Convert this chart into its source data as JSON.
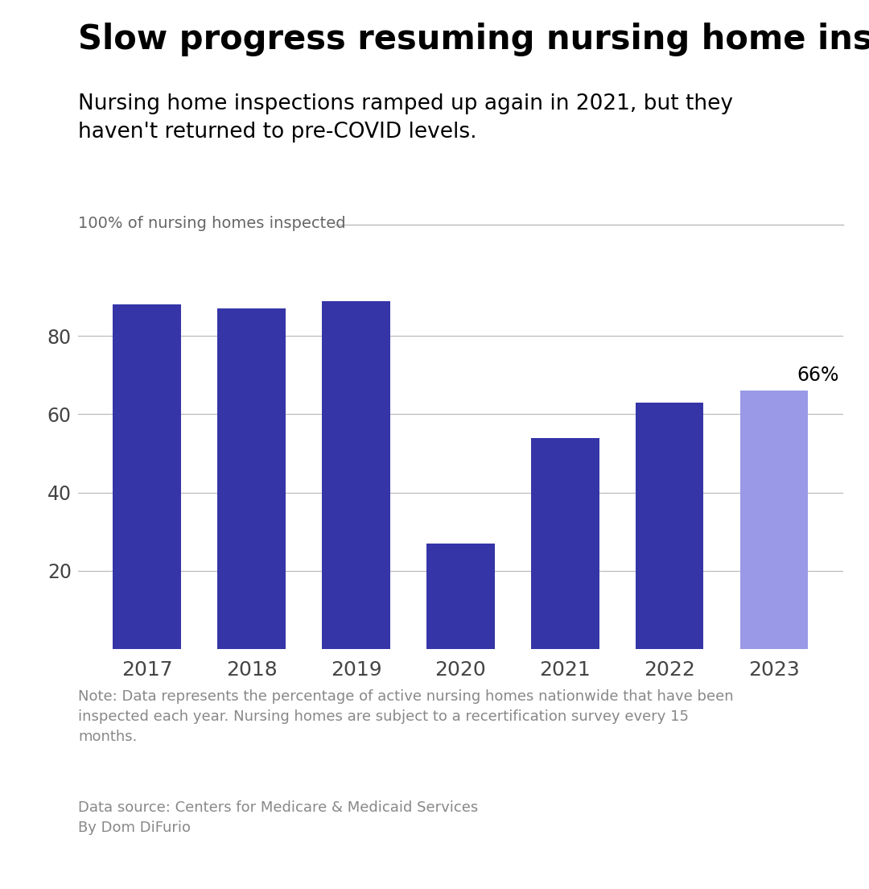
{
  "years": [
    "2017",
    "2018",
    "2019",
    "2020",
    "2021",
    "2022",
    "2023"
  ],
  "values": [
    88,
    87,
    89,
    27,
    54,
    63,
    66
  ],
  "bar_colors": [
    "#3535a8",
    "#3535a8",
    "#3535a8",
    "#3535a8",
    "#3535a8",
    "#3535a8",
    "#9999e8"
  ],
  "title": "Slow progress resuming nursing home inspections",
  "subtitle": "Nursing home inspections ramped up again in 2021, but they\nhaven't returned to pre-COVID levels.",
  "ylabel": "100% of nursing homes inspected",
  "ylim": [
    0,
    100
  ],
  "yticks": [
    20,
    40,
    60,
    80
  ],
  "label_2023": "66%",
  "note": "Note: Data represents the percentage of active nursing homes nationwide that have been\ninspected each year. Nursing homes are subject to a recertification survey every 15\nmonths.",
  "source": "Data source: Centers for Medicare & Medicaid Services\nBy Dom DiFurio",
  "title_fontsize": 30,
  "subtitle_fontsize": 19,
  "ylabel_fontsize": 14,
  "tick_fontsize": 17,
  "note_fontsize": 13,
  "source_fontsize": 13,
  "label_fontsize": 17,
  "background_color": "#ffffff",
  "grid_color": "#bbbbbb",
  "title_color": "#000000",
  "subtitle_color": "#000000",
  "ylabel_color": "#666666",
  "tick_color": "#444444",
  "note_color": "#888888",
  "source_color": "#888888"
}
